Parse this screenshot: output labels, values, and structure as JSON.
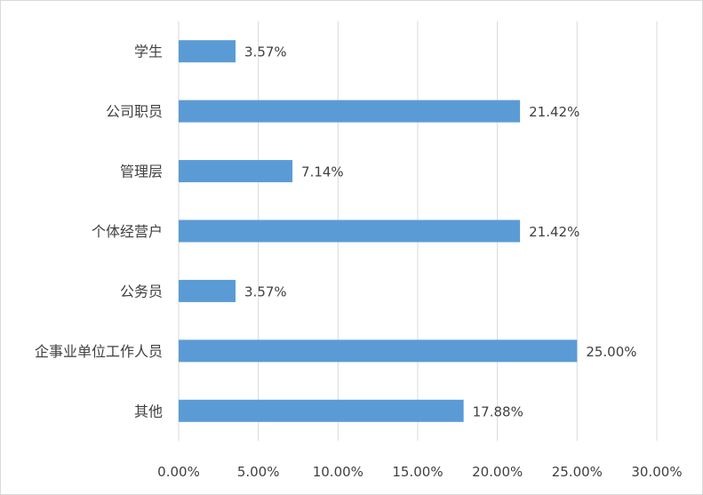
{
  "chart_data": {
    "type": "bar",
    "orientation": "horizontal",
    "categories": [
      "学生",
      "公司职员",
      "管理层",
      "个体经营户",
      "公务员",
      "企事业单位工作人员",
      "其他"
    ],
    "values": [
      3.57,
      21.42,
      7.14,
      21.42,
      3.57,
      25.0,
      17.88
    ],
    "value_labels": [
      "3.57%",
      "21.42%",
      "7.14%",
      "21.42%",
      "3.57%",
      "25.00%",
      "17.88%"
    ],
    "x_ticks": [
      0,
      5,
      10,
      15,
      20,
      25,
      30
    ],
    "x_tick_labels": [
      "0.00%",
      "5.00%",
      "10.00%",
      "15.00%",
      "20.00%",
      "25.00%",
      "30.00%"
    ],
    "xlim": [
      0,
      30
    ],
    "title": "",
    "xlabel": "",
    "ylabel": "",
    "grid": "vertical",
    "legend": "none",
    "bar_color": "#5b9bd5",
    "grid_color": "#d9d9d9",
    "text_color": "#404040"
  }
}
